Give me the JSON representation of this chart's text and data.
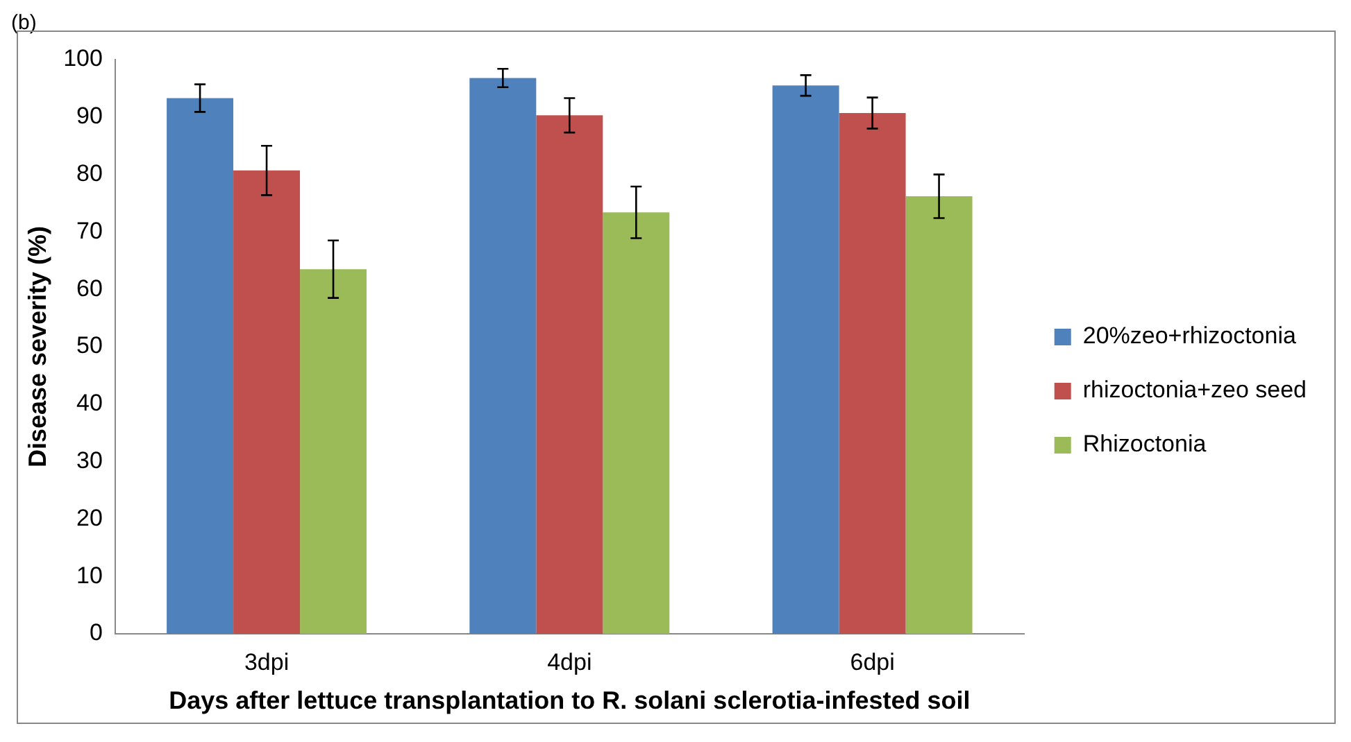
{
  "chart_data": {
    "type": "bar",
    "xlabel": "Days after lettuce transplantation to R. solani sclerotia-infested soil",
    "ylabel": "Disease severity (%)",
    "annotations": [
      "(b)"
    ],
    "categories": [
      "3dpi",
      "4dpi",
      "6dpi"
    ],
    "series": [
      {
        "name": "20%zeo+rhizoctonia",
        "color": "#4f81bd",
        "values": [
          93.3,
          96.8,
          95.5
        ],
        "errors": [
          2.4,
          1.6,
          1.8
        ]
      },
      {
        "name": "rhizoctonia+zeo seed",
        "color": "#c0504d",
        "values": [
          80.7,
          90.3,
          90.7
        ],
        "errors": [
          4.3,
          3,
          2.7
        ]
      },
      {
        "name": "Rhizoctonia",
        "color": "#9bbb59",
        "values": [
          63.5,
          73.4,
          76.2
        ],
        "errors": [
          5,
          4.5,
          3.8
        ]
      }
    ],
    "ylim": [
      0,
      100
    ],
    "yticks": [
      0,
      10,
      20,
      30,
      40,
      50,
      60,
      70,
      80,
      90,
      100
    ],
    "grid": false,
    "legend": "right"
  }
}
